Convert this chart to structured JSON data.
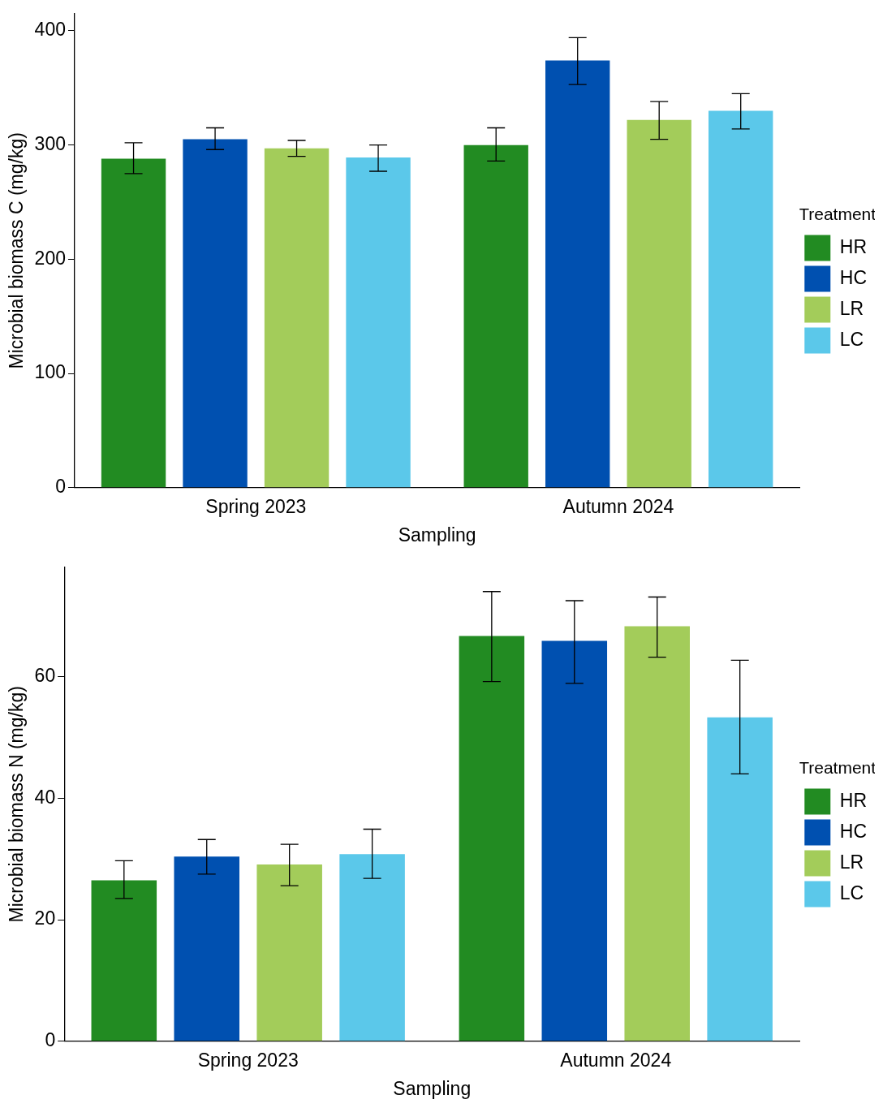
{
  "chart_data": [
    {
      "type": "bar",
      "xlabel": "Sampling",
      "ylabel": "Microbial biomass C (mg/kg)",
      "legend_title": "Treatment",
      "legend": "right",
      "categories": [
        "Spring 2023",
        "Autumn 2024"
      ],
      "ylim": [
        0,
        415
      ],
      "yticks": [
        0,
        100,
        200,
        300,
        400
      ],
      "grid": false,
      "series": [
        {
          "name": "HR",
          "color": "#228b22",
          "values": [
            288,
            300
          ],
          "errors": [
            [
              275,
              302
            ],
            [
              286,
              315
            ]
          ]
        },
        {
          "name": "HC",
          "color": "#0050b0",
          "values": [
            305,
            374
          ],
          "errors": [
            [
              296,
              315
            ],
            [
              353,
              394
            ]
          ]
        },
        {
          "name": "LR",
          "color": "#a3cc5a",
          "values": [
            297,
            322
          ],
          "errors": [
            [
              290,
              304
            ],
            [
              305,
              338
            ]
          ]
        },
        {
          "name": "LC",
          "color": "#5bc8ea",
          "values": [
            289,
            330
          ],
          "errors": [
            [
              277,
              300
            ],
            [
              314,
              345
            ]
          ]
        }
      ]
    },
    {
      "type": "bar",
      "xlabel": "Sampling",
      "ylabel": "Microbial biomass N (mg/kg)",
      "legend_title": "Treatment",
      "legend": "right",
      "categories": [
        "Spring 2023",
        "Autumn 2024"
      ],
      "ylim": [
        0,
        78
      ],
      "yticks": [
        0,
        20,
        40,
        60
      ],
      "grid": false,
      "series": [
        {
          "name": "HR",
          "color": "#228b22",
          "values": [
            26.5,
            66.7
          ],
          "errors": [
            [
              23.5,
              29.7
            ],
            [
              59.2,
              74
            ]
          ]
        },
        {
          "name": "HC",
          "color": "#0050b0",
          "values": [
            30.4,
            65.9
          ],
          "errors": [
            [
              27.5,
              33.2
            ],
            [
              58.9,
              72.5
            ]
          ]
        },
        {
          "name": "LR",
          "color": "#a3cc5a",
          "values": [
            29.1,
            68.3
          ],
          "errors": [
            [
              25.6,
              32.4
            ],
            [
              63.2,
              73.1
            ]
          ]
        },
        {
          "name": "LC",
          "color": "#5bc8ea",
          "values": [
            30.8,
            53.3
          ],
          "errors": [
            [
              26.8,
              34.9
            ],
            [
              44,
              62.7
            ]
          ]
        }
      ]
    }
  ]
}
